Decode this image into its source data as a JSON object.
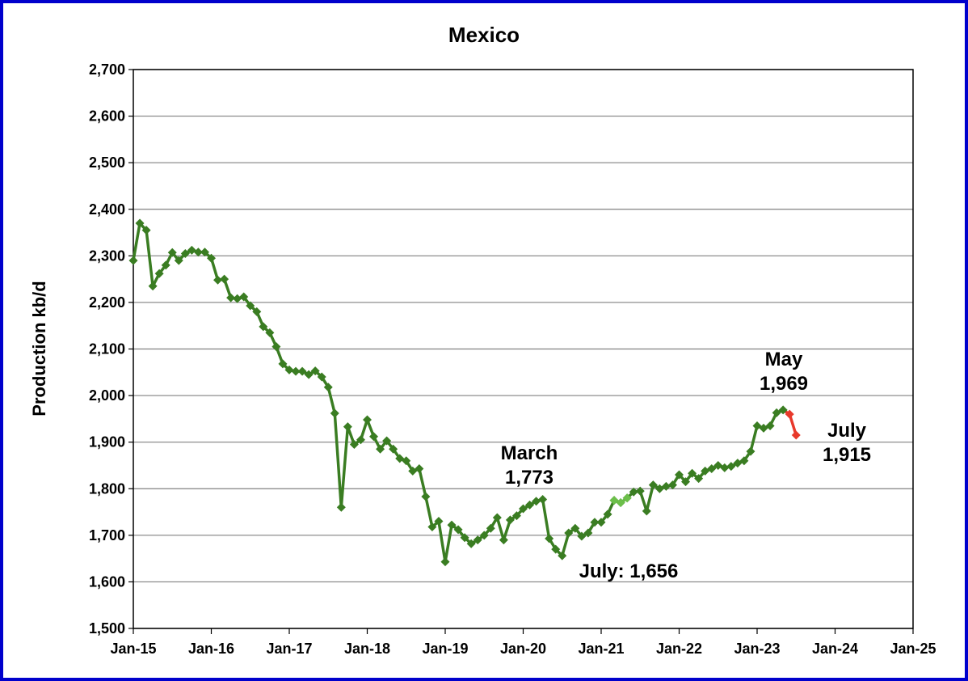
{
  "chart_data": {
    "type": "line",
    "title": "Mexico",
    "y_label": "Production kb/d",
    "x": [
      "Jan-15",
      "Feb-15",
      "Mar-15",
      "Apr-15",
      "May-15",
      "Jun-15",
      "Jul-15",
      "Aug-15",
      "Sep-15",
      "Oct-15",
      "Nov-15",
      "Dec-15",
      "Jan-16",
      "Feb-16",
      "Mar-16",
      "Apr-16",
      "May-16",
      "Jun-16",
      "Jul-16",
      "Aug-16",
      "Sep-16",
      "Oct-16",
      "Nov-16",
      "Dec-16",
      "Jan-17",
      "Feb-17",
      "Mar-17",
      "Apr-17",
      "May-17",
      "Jun-17",
      "Jul-17",
      "Aug-17",
      "Sep-17",
      "Oct-17",
      "Nov-17",
      "Dec-17",
      "Jan-18",
      "Feb-18",
      "Mar-18",
      "Apr-18",
      "May-18",
      "Jun-18",
      "Jul-18",
      "Aug-18",
      "Sep-18",
      "Oct-18",
      "Nov-18",
      "Dec-18",
      "Jan-19",
      "Feb-19",
      "Mar-19",
      "Apr-19",
      "May-19",
      "Jun-19",
      "Jul-19",
      "Aug-19",
      "Sep-19",
      "Oct-19",
      "Nov-19",
      "Dec-19",
      "Jan-20",
      "Feb-20",
      "Mar-20",
      "Apr-20",
      "May-20",
      "Jun-20",
      "Jul-20",
      "Aug-20",
      "Sep-20",
      "Oct-20",
      "Nov-20",
      "Dec-20",
      "Jan-21",
      "Feb-21",
      "Mar-21",
      "Apr-21",
      "May-21",
      "Jun-21",
      "Jul-21",
      "Aug-21",
      "Sep-21",
      "Oct-21",
      "Nov-21",
      "Dec-21",
      "Jan-22",
      "Feb-22",
      "Mar-22",
      "Apr-22",
      "May-22",
      "Jun-22",
      "Jul-22",
      "Aug-22",
      "Sep-22",
      "Oct-22",
      "Nov-22",
      "Dec-22",
      "Jan-23",
      "Feb-23",
      "Mar-23",
      "Apr-23",
      "May-23",
      "Jun-23",
      "Jul-23"
    ],
    "series": [
      {
        "color": "#3a7d22",
        "values": [
          2290,
          2370,
          2355,
          2235,
          2262,
          2280,
          2307,
          2290,
          2305,
          2312,
          2308,
          2308,
          2295,
          2248,
          2250,
          2210,
          2208,
          2212,
          2193,
          2180,
          2148,
          2135,
          2105,
          2068,
          2055,
          2052,
          2052,
          2045,
          2053,
          2040,
          2018,
          1962,
          1760,
          1933,
          1895,
          1905,
          1948,
          1912,
          1885,
          1903,
          1885,
          1865,
          1860,
          1838,
          1843,
          1783,
          1718,
          1730,
          1643,
          1722,
          1712,
          1695,
          1682,
          1690,
          1700,
          1715,
          1738,
          1690,
          1733,
          1742,
          1757,
          1765,
          1773,
          1777,
          1693,
          1670,
          1656,
          1705,
          1715,
          1698,
          1705,
          1728,
          1728,
          1745,
          1775,
          1770,
          1780,
          1793,
          1795,
          1752,
          1808,
          1800,
          1805,
          1808,
          1830,
          1815,
          1833,
          1822,
          1838,
          1843,
          1850,
          1845,
          1848,
          1855,
          1860,
          1880,
          1935,
          1930,
          1935,
          1963,
          1969,
          null,
          null
        ]
      },
      {
        "color": "#6cbf4a",
        "values": [
          null,
          null,
          null,
          null,
          null,
          null,
          null,
          null,
          null,
          null,
          null,
          null,
          null,
          null,
          null,
          null,
          null,
          null,
          null,
          null,
          null,
          null,
          null,
          null,
          null,
          null,
          null,
          null,
          null,
          null,
          null,
          null,
          null,
          null,
          null,
          null,
          null,
          null,
          null,
          null,
          null,
          null,
          null,
          null,
          null,
          null,
          null,
          null,
          null,
          null,
          null,
          null,
          null,
          null,
          null,
          null,
          null,
          null,
          null,
          null,
          null,
          null,
          null,
          null,
          null,
          null,
          null,
          null,
          null,
          null,
          null,
          null,
          null,
          null,
          1775,
          1770,
          1780,
          null,
          null,
          null,
          null,
          null,
          null,
          null,
          null,
          null,
          null,
          null,
          null,
          null,
          null,
          null,
          null,
          null,
          null,
          null,
          null,
          null,
          null,
          null,
          null,
          null,
          null
        ]
      },
      {
        "color": "#e8392b",
        "values": [
          null,
          null,
          null,
          null,
          null,
          null,
          null,
          null,
          null,
          null,
          null,
          null,
          null,
          null,
          null,
          null,
          null,
          null,
          null,
          null,
          null,
          null,
          null,
          null,
          null,
          null,
          null,
          null,
          null,
          null,
          null,
          null,
          null,
          null,
          null,
          null,
          null,
          null,
          null,
          null,
          null,
          null,
          null,
          null,
          null,
          null,
          null,
          null,
          null,
          null,
          null,
          null,
          null,
          null,
          null,
          null,
          null,
          null,
          null,
          null,
          null,
          null,
          null,
          null,
          null,
          null,
          null,
          null,
          null,
          null,
          null,
          null,
          null,
          null,
          null,
          null,
          null,
          null,
          null,
          null,
          null,
          null,
          null,
          null,
          null,
          null,
          null,
          null,
          null,
          null,
          null,
          null,
          null,
          null,
          null,
          null,
          null,
          null,
          null,
          null,
          1969,
          1960,
          1915
        ]
      }
    ],
    "xlim": [
      "Jan-15",
      "Jan-25"
    ],
    "xticks": [
      "Jan-15",
      "Jan-16",
      "Jan-17",
      "Jan-18",
      "Jan-19",
      "Jan-20",
      "Jan-21",
      "Jan-22",
      "Jan-23",
      "Jan-24",
      "Jan-25"
    ],
    "ylim": [
      1500,
      2700
    ],
    "yticks": [
      {
        "value": 1500,
        "label": "1,500"
      },
      {
        "value": 1600,
        "label": "1,600"
      },
      {
        "value": 1700,
        "label": "1,700"
      },
      {
        "value": 1800,
        "label": "1,800"
      },
      {
        "value": 1900,
        "label": "1,900"
      },
      {
        "value": 2000,
        "label": "2,000"
      },
      {
        "value": 2100,
        "label": "2,100"
      },
      {
        "value": 2200,
        "label": "2,200"
      },
      {
        "value": 2300,
        "label": "2,300"
      },
      {
        "value": 2400,
        "label": "2,400"
      },
      {
        "value": 2500,
        "label": "2,500"
      },
      {
        "value": 2600,
        "label": "2,600"
      },
      {
        "value": 2700,
        "label": "2,700"
      }
    ],
    "grid": true,
    "annotations": [
      {
        "lines": [
          "March",
          "1,773"
        ]
      },
      {
        "lines": [
          "July: 1,656"
        ]
      },
      {
        "lines": [
          "May",
          "1,969"
        ]
      },
      {
        "lines": [
          "July",
          "1,915"
        ]
      }
    ]
  }
}
